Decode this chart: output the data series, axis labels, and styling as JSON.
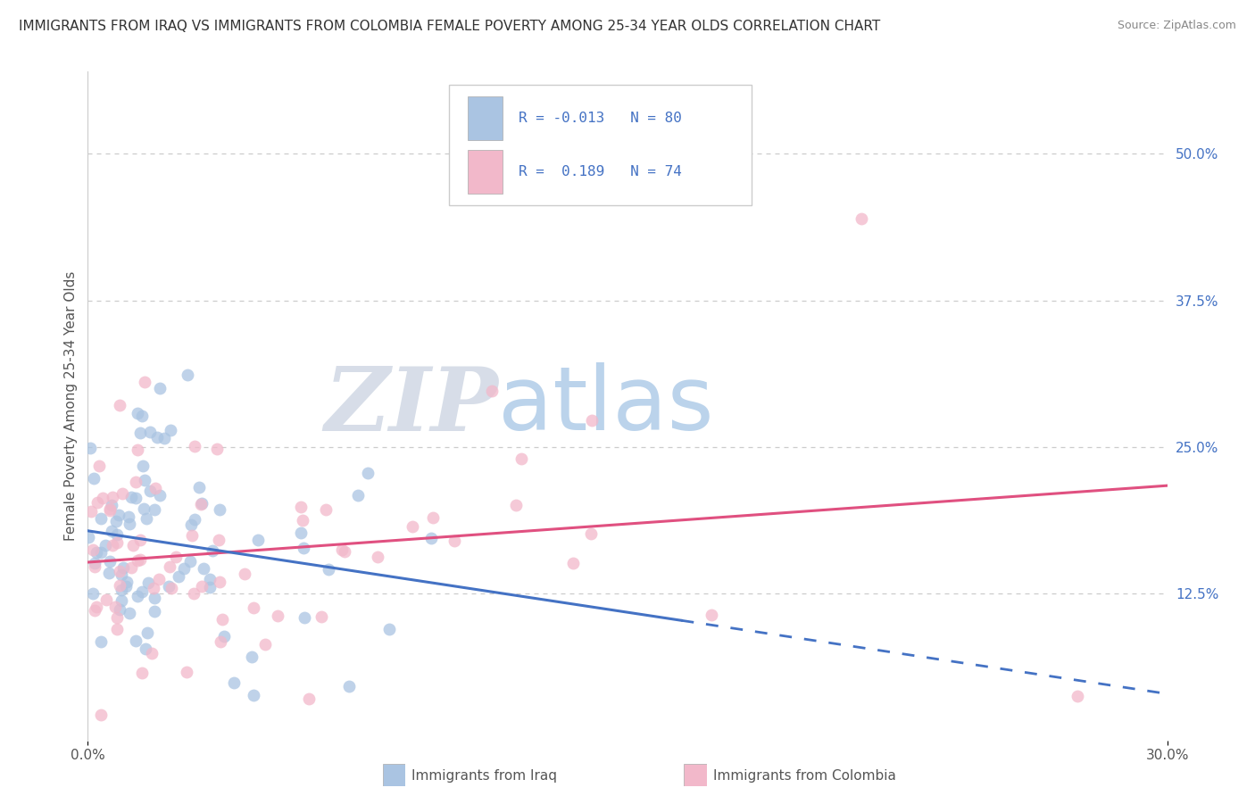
{
  "title": "IMMIGRANTS FROM IRAQ VS IMMIGRANTS FROM COLOMBIA FEMALE POVERTY AMONG 25-34 YEAR OLDS CORRELATION CHART",
  "source": "Source: ZipAtlas.com",
  "ylabel": "Female Poverty Among 25-34 Year Olds",
  "ytick_labels": [
    "12.5%",
    "25.0%",
    "37.5%",
    "50.0%"
  ],
  "ytick_values": [
    0.125,
    0.25,
    0.375,
    0.5
  ],
  "xlim": [
    0.0,
    0.3
  ],
  "ylim": [
    0.0,
    0.57
  ],
  "iraq_color": "#aac4e2",
  "colombia_color": "#f2b8ca",
  "iraq_line_color": "#4472c4",
  "colombia_line_color": "#e05080",
  "iraq_R": -0.013,
  "iraq_N": 80,
  "colombia_R": 0.189,
  "colombia_N": 74,
  "watermark_zip": "ZIP",
  "watermark_atlas": "atlas",
  "background_color": "#ffffff",
  "grid_color": "#cccccc",
  "legend_label_iraq": "Immigrants from Iraq",
  "legend_label_colombia": "Immigrants from Colombia",
  "title_fontsize": 11,
  "source_fontsize": 9,
  "tick_label_fontsize": 11
}
